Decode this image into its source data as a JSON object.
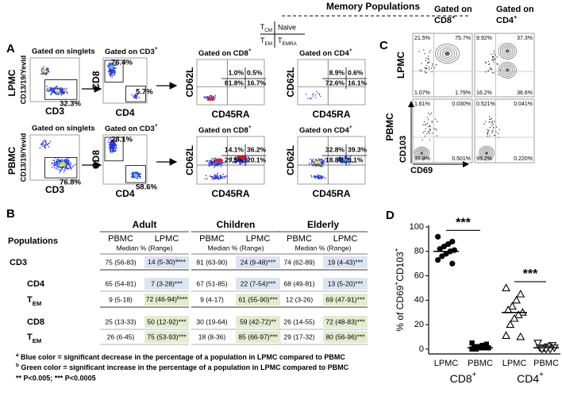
{
  "header": {
    "title": "Memory Populations",
    "legend": {
      "tl": [
        "T",
        {
          "sub": "CM"
        }
      ],
      "tr": "Naive",
      "bl": [
        "T",
        {
          "sub": "EM"
        }
      ],
      "br": [
        "T",
        {
          "sub": "EMRA"
        }
      ]
    }
  },
  "panel_a": {
    "label": "A",
    "rows": [
      {
        "name": "LPMC",
        "plots": [
          {
            "title": "Gated on singlets",
            "y_axis": "CD13/19/Yevid",
            "x_axis": "CD3",
            "gates": [
              "32.3%"
            ]
          },
          {
            "title": [
              "Gated on CD3",
              {
                "sup": "+"
              }
            ],
            "y_axis": "CD8",
            "x_axis": "CD4",
            "gates": [
              "76.4%",
              "5.7%"
            ]
          },
          {
            "title": [
              "Gated on CD8",
              {
                "sup": "+"
              }
            ],
            "y_axis": "CD62L",
            "x_axis": "CD45RA",
            "quadrants": [
              "1.0%",
              "0.5%",
              "81.8%",
              "16.7%"
            ]
          },
          {
            "title": [
              "Gated on CD4",
              {
                "sup": "+"
              }
            ],
            "y_axis": "CD62L",
            "x_axis": "CD45RA",
            "quadrants": [
              "8.9%",
              "0.6%",
              "72.6%",
              "16.1%"
            ]
          }
        ]
      },
      {
        "name": "PBMC",
        "plots": [
          {
            "title": "Gated on singlets",
            "y_axis": "CD13/19/Yevid",
            "x_axis": "CD3",
            "gates": [
              "76.8%"
            ]
          },
          {
            "title": [
              "Gated on CD3",
              {
                "sup": "+"
              }
            ],
            "y_axis": "CD8",
            "x_axis": "CD4",
            "gates": [
              "28.1%",
              "58.6%"
            ]
          },
          {
            "title": [
              "Gated on CD8",
              {
                "sup": "+"
              }
            ],
            "y_axis": "CD62L",
            "x_axis": "CD45RA",
            "quadrants": [
              "14.1%",
              "36.2%",
              "29.5%",
              "20.1%"
            ]
          },
          {
            "title": [
              "Gated on CD4",
              {
                "sup": "+"
              }
            ],
            "y_axis": "CD62L",
            "x_axis": "CD45RA",
            "quadrants": [
              "32.8%",
              "39.3%",
              "18.8%",
              "9.1%"
            ]
          }
        ]
      }
    ]
  },
  "panel_b": {
    "label": "B",
    "row_header": "Populations",
    "groups": [
      "Adult",
      "Children",
      "Elderly"
    ],
    "subheaders": [
      "PBMC",
      "LPMC"
    ],
    "subcaption": "Median % (Range)",
    "rows": [
      {
        "name": "CD3",
        "lpmc_color": "#dbe5f1",
        "cells": [
          "75 (56-83)",
          [
            "14 (5-30)",
            {
              "sup": "a"
            },
            "***"
          ],
          "81 (63-90)",
          "24 (9-48)***",
          "74 (62-89)",
          "19 (4-43)***"
        ]
      },
      {
        "name": "CD4",
        "lpmc_color": "#dbe5f1",
        "cells": [
          "65 (54-81)",
          "7 (3-28)***",
          "67 (51-85)",
          "22 (7-54)***",
          "68 (49-81)",
          "13 (5-20)***"
        ]
      },
      {
        "name": [
          "T",
          {
            "sub": "EM"
          }
        ],
        "lpmc_color": "#e3eccd",
        "cells": [
          "9 (5-18)",
          [
            "72 (46-94)",
            {
              "sup": "b"
            },
            "***"
          ],
          "9 (4-17)",
          "61 (55-90)***",
          "12 (3-26)",
          "69 (47-91)***"
        ]
      },
      {
        "name": "CD8",
        "lpmc_color": "#e3eccd",
        "cells": [
          "25 (13-33)",
          "50 (12-92)***",
          "30 (19-64)",
          "59 (42-72)**",
          "26 (14-55)",
          "72 (48-83)***"
        ]
      },
      {
        "name": [
          "T",
          {
            "sub": "EM"
          }
        ],
        "lpmc_color": "#e3eccd",
        "cells": [
          "26 (6-45)",
          "75 (53-93)***",
          "18 (8-36)",
          "85 (66-97)***",
          "29 (17-32)",
          "80 (56-96)***"
        ]
      }
    ],
    "footnotes": [
      [
        {
          "sup": "a"
        },
        " Blue color = significant decrease in the percentage of a population in LPMC compared to PBMC"
      ],
      [
        {
          "sup": "b"
        },
        " Green color = significant increase in the percentage of a population in LPMC compared to PBMC"
      ],
      "** P<0.005; *** P<0.0005"
    ]
  },
  "panel_c": {
    "label": "C",
    "columns": [
      {
        "line1": "Gated on",
        "line2": [
          "CD8",
          {
            "sup": "+"
          }
        ]
      },
      {
        "line1": "Gated on",
        "line2": [
          "CD4",
          {
            "sup": "+"
          }
        ]
      }
    ],
    "rows": [
      "LPMC",
      "PBMC"
    ],
    "y_axis": "CD103",
    "x_axis": "CD69",
    "plots": [
      [
        "21.5%",
        "75.7%",
        "1.07%",
        "1.79%"
      ],
      [
        "9.92%",
        "37.3%",
        "16.2%",
        "36.6%"
      ],
      [
        "1.61%",
        "0.030%",
        "97.9%",
        "0.501%"
      ],
      [
        "0.521%",
        "0.041%",
        "99.2%",
        "0.220%"
      ]
    ]
  },
  "chart_data": {
    "type": "dot",
    "label": "D",
    "ylabel": [
      "% of CD69",
      {
        "sup": "+"
      },
      "CD103",
      {
        "sup": "+"
      }
    ],
    "categories": [
      "LPMC",
      "PBMC",
      "LPMC",
      "PBMC"
    ],
    "groups": [
      [
        "CD8",
        {
          "sup": "+"
        }
      ],
      [
        "CD4",
        {
          "sup": "+"
        }
      ]
    ],
    "markers": [
      "circle",
      "square",
      "triangle",
      "triangle-down"
    ],
    "values": [
      [
        92,
        88,
        86,
        84,
        82,
        81,
        80,
        78,
        76,
        73,
        70
      ],
      [
        5,
        4,
        3,
        2,
        2,
        1,
        1,
        1,
        0,
        0
      ],
      [
        50,
        45,
        40,
        35,
        32,
        30,
        28,
        25,
        20,
        11,
        10
      ],
      [
        5,
        3,
        2,
        1,
        1,
        1,
        0,
        0,
        0
      ]
    ],
    "medians": [
      80,
      1,
      30,
      1
    ],
    "significance": [
      "***",
      "***"
    ],
    "ylim": [
      -4,
      100
    ],
    "yticks": [
      0,
      20,
      40,
      60,
      80,
      100
    ]
  }
}
